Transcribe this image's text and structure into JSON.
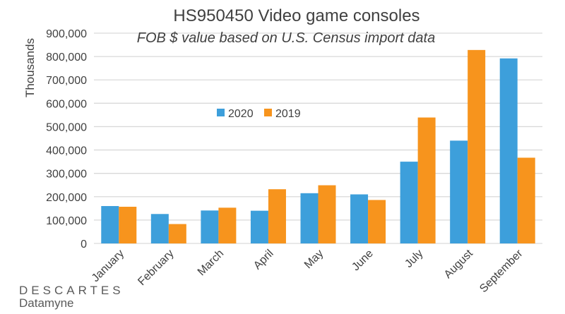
{
  "chart_data": {
    "type": "bar",
    "title": "HS950450 Video game consoles",
    "subtitle": "FOB $ value based on U.S. Census import data",
    "xlabel": "",
    "ylabel": "Thousands",
    "ylim": [
      0,
      900000
    ],
    "yticks": [
      "0",
      "100,000",
      "200,000",
      "300,000",
      "400,000",
      "500,000",
      "600,000",
      "700,000",
      "800,000",
      "900,000"
    ],
    "categories": [
      "January",
      "February",
      "March",
      "April",
      "May",
      "June",
      "July",
      "August",
      "September"
    ],
    "series": [
      {
        "name": "2020",
        "color": "#3d9fdb",
        "values": [
          160000,
          126000,
          141000,
          140000,
          215000,
          210000,
          350000,
          440000,
          792000
        ]
      },
      {
        "name": "2019",
        "color": "#f7941d",
        "values": [
          157000,
          83000,
          153000,
          232000,
          249000,
          186000,
          539000,
          828000,
          367000
        ]
      }
    ],
    "grid": true,
    "legend": "center"
  },
  "logo": {
    "line1": "DESCARTES",
    "line2": "Datamyne"
  }
}
